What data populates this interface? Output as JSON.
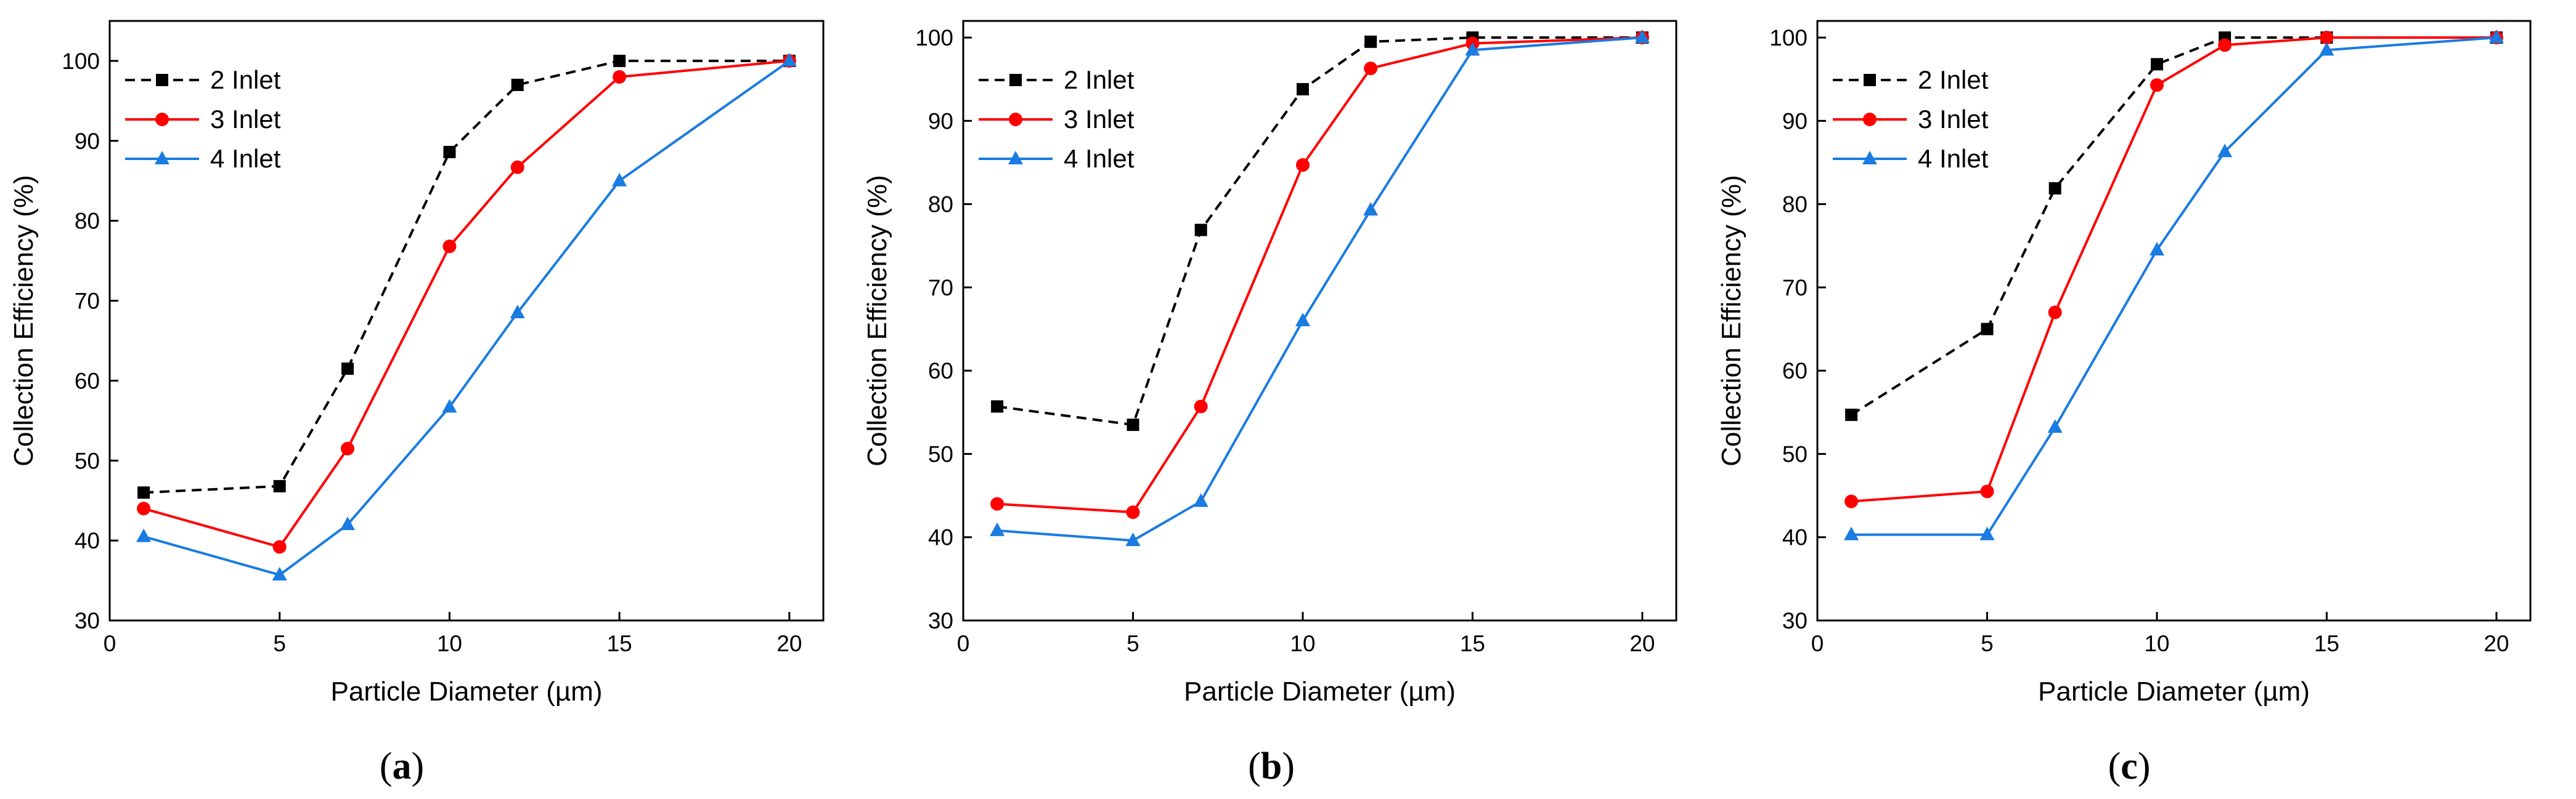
{
  "chart_data": [
    {
      "type": "line",
      "panel_label": "(a)",
      "panel_letter": "a",
      "xlabel": "Particle Diameter (µm)",
      "ylabel": "Collection Efficiency (%)",
      "xlim": [
        0,
        21
      ],
      "ylim": [
        30,
        105
      ],
      "xticks": [
        0,
        5,
        10,
        15,
        20
      ],
      "yticks": [
        30,
        40,
        50,
        60,
        70,
        80,
        90,
        100
      ],
      "x": [
        1,
        5,
        7,
        10,
        12,
        15,
        20
      ],
      "legend_position": "top-left",
      "grid": false,
      "series": [
        {
          "name": "2 Inlet",
          "color": "#000000",
          "dash": "dashed",
          "marker": "square",
          "values": [
            46,
            46.8,
            61.5,
            88.6,
            97,
            100,
            100
          ]
        },
        {
          "name": "3 Inlet",
          "color": "#ff0000",
          "dash": "solid",
          "marker": "circle",
          "values": [
            44,
            39.2,
            51.5,
            76.8,
            86.7,
            98,
            100
          ]
        },
        {
          "name": "4 Inlet",
          "color": "#1a7be0",
          "dash": "solid",
          "marker": "triangle",
          "values": [
            40.5,
            35.7,
            42,
            56.7,
            68.5,
            85,
            100
          ]
        }
      ]
    },
    {
      "type": "line",
      "panel_label": "(b)",
      "panel_letter": "b",
      "xlabel": "Particle Diameter (µm)",
      "ylabel": "Collection Efficiency (%)",
      "xlim": [
        0,
        21
      ],
      "ylim": [
        30,
        102
      ],
      "xticks": [
        0,
        5,
        10,
        15,
        20
      ],
      "yticks": [
        30,
        40,
        50,
        60,
        70,
        80,
        90,
        100
      ],
      "x": [
        1,
        5,
        7,
        10,
        12,
        15,
        20
      ],
      "legend_position": "top-left",
      "grid": false,
      "series": [
        {
          "name": "2 Inlet",
          "color": "#000000",
          "dash": "dashed",
          "marker": "square",
          "values": [
            55.7,
            53.5,
            76.9,
            93.8,
            99.5,
            100,
            100
          ]
        },
        {
          "name": "3 Inlet",
          "color": "#ff0000",
          "dash": "solid",
          "marker": "circle",
          "values": [
            44,
            43,
            55.7,
            84.7,
            96.3,
            99.3,
            100
          ]
        },
        {
          "name": "4 Inlet",
          "color": "#1a7be0",
          "dash": "solid",
          "marker": "triangle",
          "values": [
            40.8,
            39.6,
            44.3,
            66,
            79.3,
            98.5,
            100
          ]
        }
      ]
    },
    {
      "type": "line",
      "panel_label": "(c)",
      "panel_letter": "c",
      "xlabel": "Particle Diameter (µm)",
      "ylabel": "Collection Efficiency (%)",
      "xlim": [
        0,
        21
      ],
      "ylim": [
        30,
        102
      ],
      "xticks": [
        0,
        5,
        10,
        15,
        20
      ],
      "yticks": [
        30,
        40,
        50,
        60,
        70,
        80,
        90,
        100
      ],
      "x": [
        1,
        5,
        7,
        10,
        12,
        15,
        20
      ],
      "legend_position": "top-left",
      "grid": false,
      "series": [
        {
          "name": "2 Inlet",
          "color": "#000000",
          "dash": "dashed",
          "marker": "square",
          "values": [
            54.7,
            65,
            81.9,
            96.8,
            100,
            100,
            100
          ]
        },
        {
          "name": "3 Inlet",
          "color": "#ff0000",
          "dash": "solid",
          "marker": "circle",
          "values": [
            44.3,
            45.5,
            67,
            94.3,
            99.1,
            100,
            100
          ]
        },
        {
          "name": "4 Inlet",
          "color": "#1a7be0",
          "dash": "solid",
          "marker": "triangle",
          "values": [
            40.3,
            40.3,
            53.2,
            74.5,
            86.3,
            98.5,
            100
          ]
        }
      ]
    }
  ]
}
